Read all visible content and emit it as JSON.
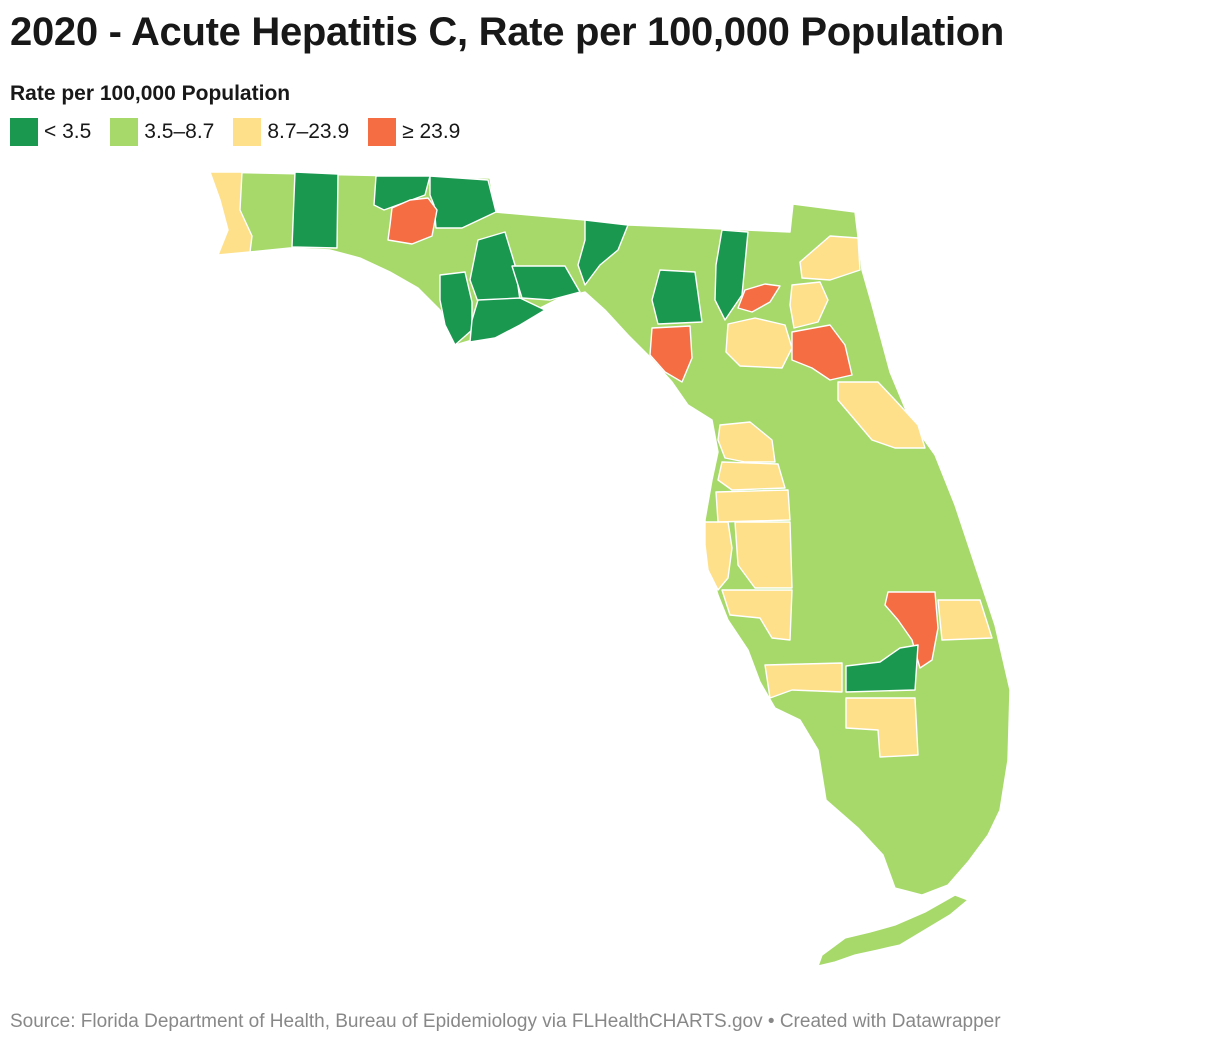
{
  "header": {
    "title": "2020 - Acute Hepatitis C, Rate per 100,000 Population"
  },
  "legend": {
    "title": "Rate per 100,000 Population",
    "items": [
      {
        "label": "< 3.5",
        "color": "#1a9850"
      },
      {
        "label": "3.5–8.7",
        "color": "#a6d96a"
      },
      {
        "label": "8.7–23.9",
        "color": "#fee08b"
      },
      {
        "label": "≥ 23.9",
        "color": "#f46d43"
      }
    ]
  },
  "map": {
    "region": "Florida",
    "unit": "county",
    "colors": {
      "low": "#1a9850",
      "mid_low": "#a6d96a",
      "mid_high": "#fee08b",
      "high": "#f46d43"
    }
  },
  "footer": {
    "source": "Source: Florida Department of Health, Bureau of Epidemiology via FLHealthCHARTS.gov • Created with Datawrapper"
  }
}
